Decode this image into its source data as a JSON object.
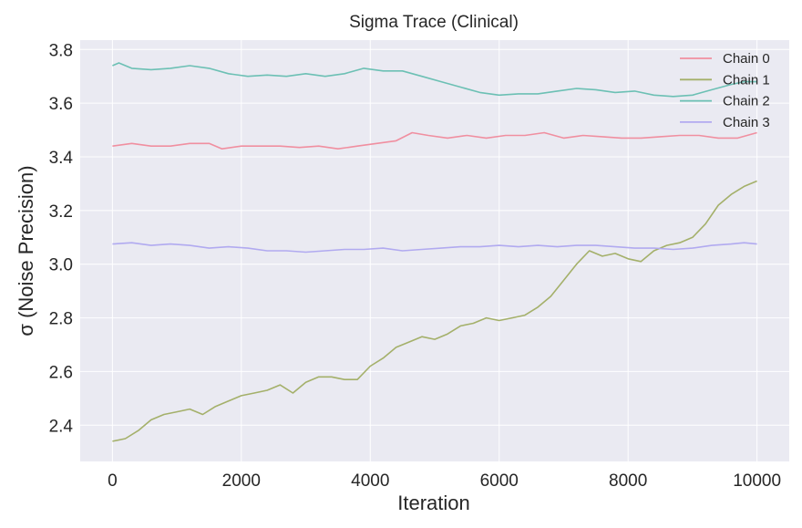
{
  "chart_data": {
    "type": "line",
    "title": "Sigma Trace (Clinical)",
    "xlabel": "Iteration",
    "ylabel": "σ (Noise Precision)",
    "xlim": [
      -500,
      10500
    ],
    "ylim": [
      2.265,
      3.835
    ],
    "xticks": [
      0,
      2000,
      4000,
      6000,
      8000,
      10000
    ],
    "yticks": [
      2.4,
      2.6,
      2.8,
      3.0,
      3.2,
      3.4,
      3.6,
      3.8
    ],
    "xtick_labels": [
      "0",
      "2000",
      "4000",
      "6000",
      "8000",
      "10000"
    ],
    "ytick_labels": [
      "2.4",
      "2.6",
      "2.8",
      "3.0",
      "3.2",
      "3.4",
      "3.6",
      "3.8"
    ],
    "grid": true,
    "legend_position": "top-right",
    "series": [
      {
        "name": "Chain 0",
        "color": "#f08fa0",
        "x": [
          0,
          300,
          600,
          900,
          1200,
          1500,
          1700,
          2000,
          2300,
          2600,
          2900,
          3200,
          3500,
          3800,
          4100,
          4400,
          4650,
          4900,
          5200,
          5500,
          5800,
          6100,
          6400,
          6700,
          7000,
          7300,
          7600,
          7900,
          8200,
          8500,
          8800,
          9100,
          9400,
          9700,
          10000
        ],
        "y": [
          3.44,
          3.45,
          3.44,
          3.44,
          3.45,
          3.45,
          3.43,
          3.44,
          3.44,
          3.44,
          3.435,
          3.44,
          3.43,
          3.44,
          3.45,
          3.46,
          3.49,
          3.48,
          3.47,
          3.48,
          3.47,
          3.48,
          3.48,
          3.49,
          3.47,
          3.48,
          3.475,
          3.47,
          3.47,
          3.475,
          3.48,
          3.48,
          3.47,
          3.47,
          3.49
        ]
      },
      {
        "name": "Chain 1",
        "color": "#a4b06a",
        "x": [
          0,
          200,
          400,
          600,
          800,
          1000,
          1200,
          1400,
          1600,
          1800,
          2000,
          2200,
          2400,
          2600,
          2800,
          3000,
          3200,
          3400,
          3600,
          3800,
          4000,
          4200,
          4400,
          4600,
          4800,
          5000,
          5200,
          5400,
          5600,
          5800,
          6000,
          6200,
          6400,
          6600,
          6800,
          7000,
          7200,
          7400,
          7600,
          7800,
          8000,
          8200,
          8400,
          8600,
          8800,
          9000,
          9200,
          9400,
          9600,
          9800,
          10000
        ],
        "y": [
          2.34,
          2.35,
          2.38,
          2.42,
          2.44,
          2.45,
          2.46,
          2.44,
          2.47,
          2.49,
          2.51,
          2.52,
          2.53,
          2.55,
          2.52,
          2.56,
          2.58,
          2.58,
          2.57,
          2.57,
          2.62,
          2.65,
          2.69,
          2.71,
          2.73,
          2.72,
          2.74,
          2.77,
          2.78,
          2.8,
          2.79,
          2.8,
          2.81,
          2.84,
          2.88,
          2.94,
          3.0,
          3.05,
          3.03,
          3.04,
          3.02,
          3.01,
          3.05,
          3.07,
          3.08,
          3.1,
          3.15,
          3.22,
          3.26,
          3.29,
          3.31
        ]
      },
      {
        "name": "Chain 2",
        "color": "#6cc0b4",
        "x": [
          0,
          100,
          300,
          600,
          900,
          1200,
          1500,
          1800,
          2100,
          2400,
          2700,
          3000,
          3300,
          3600,
          3900,
          4200,
          4500,
          4800,
          5100,
          5400,
          5700,
          6000,
          6300,
          6600,
          6900,
          7200,
          7500,
          7800,
          8100,
          8400,
          8700,
          9000,
          9300,
          9600,
          9800,
          10000
        ],
        "y": [
          3.74,
          3.75,
          3.73,
          3.725,
          3.73,
          3.74,
          3.73,
          3.71,
          3.7,
          3.705,
          3.7,
          3.71,
          3.7,
          3.71,
          3.73,
          3.72,
          3.72,
          3.7,
          3.68,
          3.66,
          3.64,
          3.63,
          3.635,
          3.635,
          3.645,
          3.655,
          3.65,
          3.64,
          3.645,
          3.63,
          3.625,
          3.63,
          3.65,
          3.67,
          3.68,
          3.68
        ]
      },
      {
        "name": "Chain 3",
        "color": "#b1aaf0",
        "x": [
          0,
          300,
          600,
          900,
          1200,
          1500,
          1800,
          2100,
          2400,
          2700,
          3000,
          3300,
          3600,
          3900,
          4200,
          4500,
          4800,
          5100,
          5400,
          5700,
          6000,
          6300,
          6600,
          6900,
          7200,
          7500,
          7800,
          8100,
          8400,
          8700,
          9000,
          9300,
          9600,
          9800,
          10000
        ],
        "y": [
          3.075,
          3.08,
          3.07,
          3.075,
          3.07,
          3.06,
          3.065,
          3.06,
          3.05,
          3.05,
          3.045,
          3.05,
          3.055,
          3.055,
          3.06,
          3.05,
          3.055,
          3.06,
          3.065,
          3.065,
          3.07,
          3.065,
          3.07,
          3.065,
          3.07,
          3.07,
          3.065,
          3.06,
          3.06,
          3.055,
          3.06,
          3.07,
          3.075,
          3.08,
          3.075
        ]
      }
    ]
  }
}
